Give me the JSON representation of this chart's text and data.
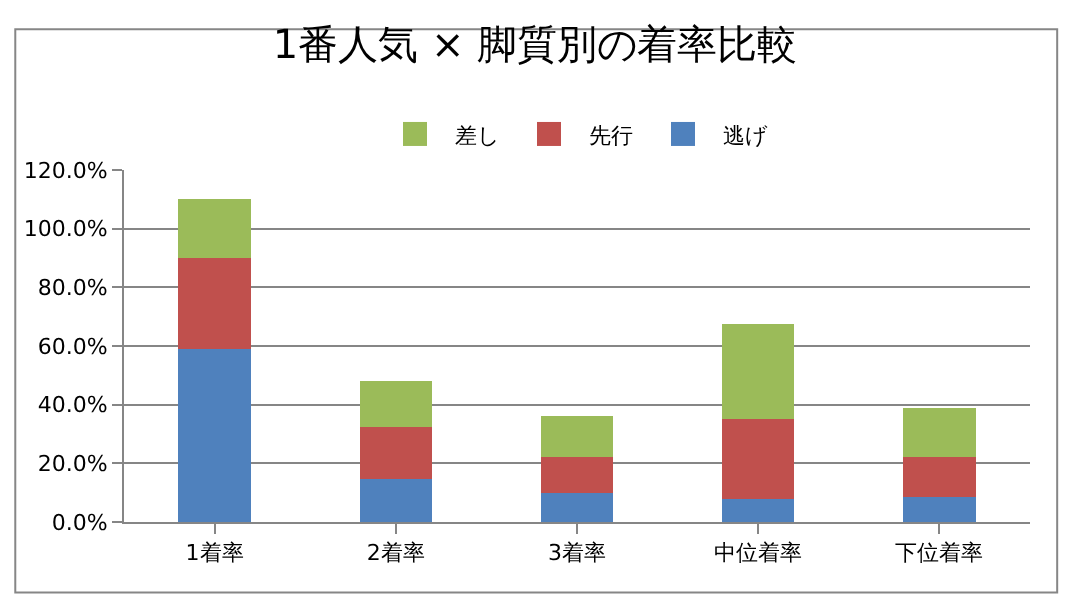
{
  "chart_data": {
    "type": "bar",
    "title": "1番人気 × 脚質別の着率比較",
    "stacked": true,
    "categories": [
      "1着率",
      "2着率",
      "3着率",
      "中位着率",
      "下位着率"
    ],
    "series": [
      {
        "name": "逃げ",
        "color": "#4f81bd",
        "values": [
          59,
          14.5,
          10,
          8,
          8.5
        ]
      },
      {
        "name": "先行",
        "color": "#c0504d",
        "values": [
          31,
          18,
          12,
          27,
          13.5
        ]
      },
      {
        "name": "差し",
        "color": "#9bbb59",
        "values": [
          20,
          15.5,
          14,
          32.5,
          17
        ]
      }
    ],
    "ylim": [
      0,
      120
    ],
    "yticks": [
      {
        "value": 0,
        "label": "0.0%"
      },
      {
        "value": 20,
        "label": "20.0%"
      },
      {
        "value": 40,
        "label": "40.0%"
      },
      {
        "value": 60,
        "label": "60.0%"
      },
      {
        "value": 80,
        "label": "80.0%"
      },
      {
        "value": 100,
        "label": "100.0%"
      },
      {
        "value": 120,
        "label": "120.0%"
      }
    ],
    "grid": "y",
    "legend": "top"
  }
}
